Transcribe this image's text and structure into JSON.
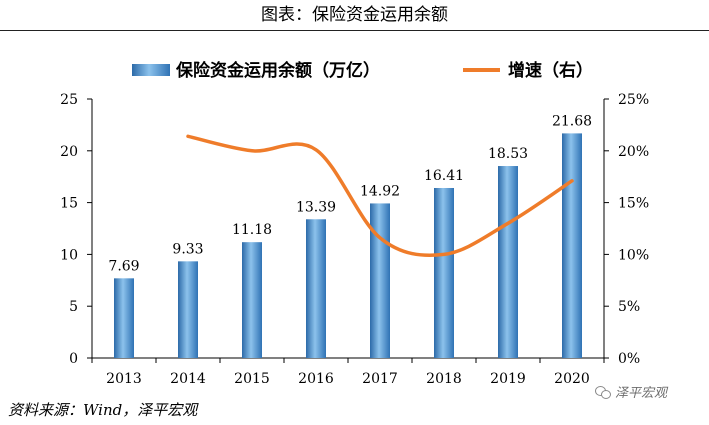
{
  "header": {
    "title": "图表：保险资金运用余额"
  },
  "source": "资料来源：Wind，泽平宏观",
  "watermark": "泽平宏观",
  "colors": {
    "bar": "#3a7fc0",
    "bar_light": "#8cc2ec",
    "line": "#ef7c2a"
  },
  "chart_data": {
    "type": "bar",
    "categories": [
      "2013",
      "2014",
      "2015",
      "2016",
      "2017",
      "2018",
      "2019",
      "2020"
    ],
    "series": [
      {
        "name": "保险资金运用余额（万亿）",
        "type": "bar",
        "axis": "left",
        "values": [
          7.69,
          9.33,
          11.18,
          13.39,
          14.92,
          16.41,
          18.53,
          21.68
        ],
        "labels": [
          "7.69",
          "9.33",
          "11.18",
          "13.39",
          "14.92",
          "16.41",
          "18.53",
          "21.68"
        ]
      },
      {
        "name": "增速（右）",
        "type": "line",
        "axis": "right",
        "values": [
          null,
          21.4,
          20.0,
          20.1,
          11.6,
          10.0,
          13.0,
          17.1
        ]
      }
    ],
    "y_left": {
      "min": 0,
      "max": 25,
      "ticks": [
        "0",
        "5",
        "10",
        "15",
        "20",
        "25"
      ]
    },
    "y_right": {
      "min": 0,
      "max": 25,
      "ticks": [
        "0%",
        "5%",
        "10%",
        "15%",
        "20%",
        "25%"
      ]
    },
    "legend_position": "top",
    "grid": false
  }
}
